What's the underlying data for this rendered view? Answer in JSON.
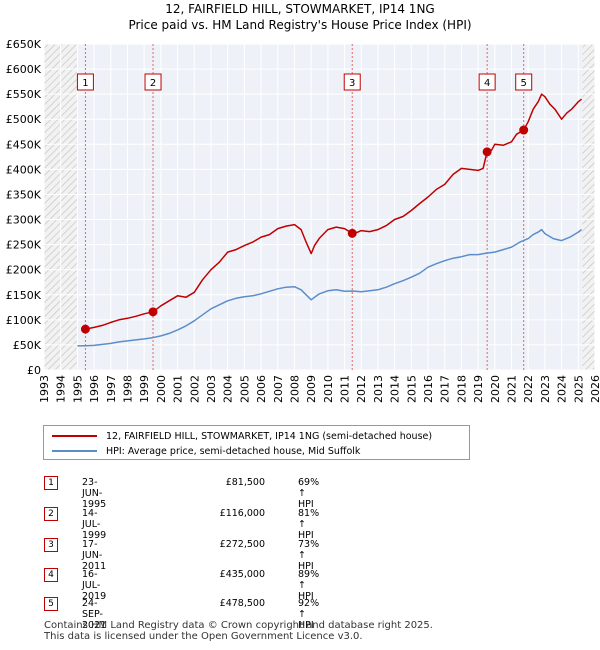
{
  "title_line1": "12, FAIRFIELD HILL, STOWMARKET, IP14 1NG",
  "title_line2": "Price paid vs. HM Land Registry's House Price Index (HPI)",
  "chart_data": {
    "type": "line",
    "xlim": [
      1993,
      2026
    ],
    "ylim": [
      0,
      650000
    ],
    "x_ticks": [
      "1993",
      "1994",
      "1995",
      "1996",
      "1997",
      "1998",
      "1999",
      "2000",
      "2001",
      "2002",
      "2003",
      "2004",
      "2005",
      "2006",
      "2007",
      "2008",
      "2009",
      "2010",
      "2011",
      "2012",
      "2013",
      "2014",
      "2015",
      "2016",
      "2017",
      "2018",
      "2019",
      "2020",
      "2021",
      "2022",
      "2023",
      "2024",
      "2025",
      "2026"
    ],
    "y_ticks": [
      {
        "value": 0,
        "label": "£0"
      },
      {
        "value": 50000,
        "label": "£50K"
      },
      {
        "value": 100000,
        "label": "£100K"
      },
      {
        "value": 150000,
        "label": "£150K"
      },
      {
        "value": 200000,
        "label": "£200K"
      },
      {
        "value": 250000,
        "label": "£250K"
      },
      {
        "value": 300000,
        "label": "£300K"
      },
      {
        "value": 350000,
        "label": "£350K"
      },
      {
        "value": 400000,
        "label": "£400K"
      },
      {
        "value": 450000,
        "label": "£450K"
      },
      {
        "value": 500000,
        "label": "£500K"
      },
      {
        "value": 550000,
        "label": "£550K"
      },
      {
        "value": 600000,
        "label": "£600K"
      },
      {
        "value": 650000,
        "label": "£650K"
      }
    ],
    "hatched_regions": [
      [
        1993,
        1995.0
      ],
      [
        2025.25,
        2026
      ]
    ],
    "series": [
      {
        "name": "12, FAIRFIELD HILL, STOWMARKET, IP14 1NG (semi-detached house)",
        "color": "#c00000",
        "x": [
          1995.48,
          1996.0,
          1996.5,
          1997.0,
          1997.5,
          1998.0,
          1998.5,
          1999.0,
          1999.53,
          2000.0,
          2000.5,
          2001.0,
          2001.5,
          2002.0,
          2002.5,
          2003.0,
          2003.5,
          2004.0,
          2004.5,
          2005.0,
          2005.5,
          2006.0,
          2006.5,
          2007.0,
          2007.5,
          2008.0,
          2008.4,
          2008.7,
          2009.0,
          2009.2,
          2009.5,
          2010.0,
          2010.5,
          2011.0,
          2011.46,
          2011.8,
          2012.0,
          2012.5,
          2013.0,
          2013.5,
          2014.0,
          2014.5,
          2015.0,
          2015.5,
          2016.0,
          2016.5,
          2017.0,
          2017.5,
          2018.0,
          2018.5,
          2019.0,
          2019.3,
          2019.54,
          2019.8,
          2020.0,
          2020.5,
          2021.0,
          2021.3,
          2021.73,
          2022.0,
          2022.3,
          2022.6,
          2022.8,
          2023.0,
          2023.3,
          2023.6,
          2024.0,
          2024.3,
          2024.6,
          2025.0,
          2025.2
        ],
        "y": [
          81500,
          85000,
          89000,
          95000,
          100000,
          103000,
          107000,
          112000,
          116000,
          128000,
          138000,
          148000,
          145000,
          155000,
          180000,
          200000,
          215000,
          235000,
          240000,
          248000,
          255000,
          265000,
          270000,
          282000,
          287000,
          290000,
          280000,
          255000,
          232000,
          248000,
          263000,
          280000,
          285000,
          282000,
          272500,
          275000,
          278000,
          276000,
          280000,
          288000,
          300000,
          306000,
          318000,
          332000,
          345000,
          360000,
          370000,
          390000,
          402000,
          400000,
          398000,
          402000,
          435000,
          438000,
          450000,
          448000,
          455000,
          470000,
          478500,
          495000,
          520000,
          535000,
          550000,
          545000,
          530000,
          520000,
          500000,
          512000,
          520000,
          535000,
          540000
        ]
      },
      {
        "name": "HPI: Average price, semi-detached house, Mid Suffolk",
        "color": "#5b8ec9",
        "x": [
          1995.0,
          1995.5,
          1996.0,
          1996.5,
          1997.0,
          1997.5,
          1998.0,
          1998.5,
          1999.0,
          1999.5,
          2000.0,
          2000.5,
          2001.0,
          2001.5,
          2002.0,
          2002.5,
          2003.0,
          2003.5,
          2004.0,
          2004.5,
          2005.0,
          2005.5,
          2006.0,
          2006.5,
          2007.0,
          2007.5,
          2008.0,
          2008.4,
          2008.7,
          2009.0,
          2009.2,
          2009.5,
          2010.0,
          2010.5,
          2011.0,
          2011.5,
          2012.0,
          2012.5,
          2013.0,
          2013.5,
          2014.0,
          2014.5,
          2015.0,
          2015.5,
          2016.0,
          2016.5,
          2017.0,
          2017.5,
          2018.0,
          2018.5,
          2019.0,
          2019.5,
          2020.0,
          2020.5,
          2021.0,
          2021.5,
          2022.0,
          2022.3,
          2022.6,
          2022.8,
          2023.0,
          2023.5,
          2024.0,
          2024.5,
          2025.0,
          2025.2
        ],
        "y": [
          48000,
          48500,
          49000,
          51000,
          53000,
          56000,
          58000,
          60000,
          62000,
          64500,
          68000,
          73000,
          80000,
          88000,
          98000,
          110000,
          122000,
          130000,
          138000,
          143000,
          146000,
          148000,
          152000,
          157000,
          162000,
          165000,
          166000,
          160000,
          150000,
          140000,
          145000,
          152000,
          158000,
          160000,
          157000,
          157500,
          156000,
          158000,
          160000,
          165000,
          172000,
          178000,
          185000,
          193000,
          205000,
          212000,
          218000,
          223000,
          226000,
          230000,
          230000,
          233000,
          235000,
          240000,
          245000,
          255000,
          262000,
          270000,
          275000,
          280000,
          272000,
          262000,
          258000,
          265000,
          275000,
          280000
        ]
      }
    ],
    "transactions": [
      {
        "num": "1",
        "year": 1995.48,
        "price": 81500
      },
      {
        "num": "2",
        "year": 1999.53,
        "price": 116000
      },
      {
        "num": "3",
        "year": 2011.46,
        "price": 272500
      },
      {
        "num": "4",
        "year": 2019.54,
        "price": 435000
      },
      {
        "num": "5",
        "year": 2021.73,
        "price": 478500
      }
    ]
  },
  "legend": {
    "red_label": "12, FAIRFIELD HILL, STOWMARKET, IP14 1NG (semi-detached house)",
    "blue_label": "HPI: Average price, semi-detached house, Mid Suffolk"
  },
  "table": [
    {
      "num": "1",
      "date": "23-JUN-1995",
      "price": "£81,500",
      "hpi": "69% ↑ HPI"
    },
    {
      "num": "2",
      "date": "14-JUL-1999",
      "price": "£116,000",
      "hpi": "81% ↑ HPI"
    },
    {
      "num": "3",
      "date": "17-JUN-2011",
      "price": "£272,500",
      "hpi": "73% ↑ HPI"
    },
    {
      "num": "4",
      "date": "16-JUL-2019",
      "price": "£435,000",
      "hpi": "89% ↑ HPI"
    },
    {
      "num": "5",
      "date": "24-SEP-2021",
      "price": "£478,500",
      "hpi": "92% ↑ HPI"
    }
  ],
  "footer_line1": "Contains HM Land Registry data © Crown copyright and database right 2025.",
  "footer_line2": "This data is licensed under the Open Government Licence v3.0."
}
